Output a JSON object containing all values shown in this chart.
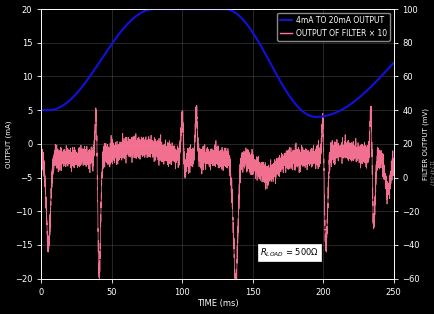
{
  "xlabel": "TIME (ms)",
  "ylabel_left": "OUTPUT (mA)",
  "ylabel_right": "FILTER OUTPUT (mV)",
  "xlim": [
    0,
    250
  ],
  "ylim_left": [
    -20,
    20
  ],
  "ylim_right": [
    -60,
    100
  ],
  "xticks": [
    0,
    50,
    100,
    150,
    200,
    250
  ],
  "yticks_left": [
    -20,
    -15,
    -10,
    -5,
    0,
    5,
    10,
    15,
    20
  ],
  "yticks_right": [
    -60,
    -40,
    -20,
    0,
    20,
    40,
    60,
    80,
    100
  ],
  "blue_label": "4mA TO 20mA OUTPUT",
  "pink_label": "OUTPUT OF FILTER × 10",
  "annotation_text": "R₀ = 500Ω",
  "bg_color": "#000000",
  "grid_color": "#555555",
  "blue_color": "#1111DD",
  "pink_color": "#FF7799",
  "text_color": "#FFFFFF",
  "axis_label_fontsize": 6,
  "tick_fontsize": 6,
  "legend_fontsize": 5.5
}
